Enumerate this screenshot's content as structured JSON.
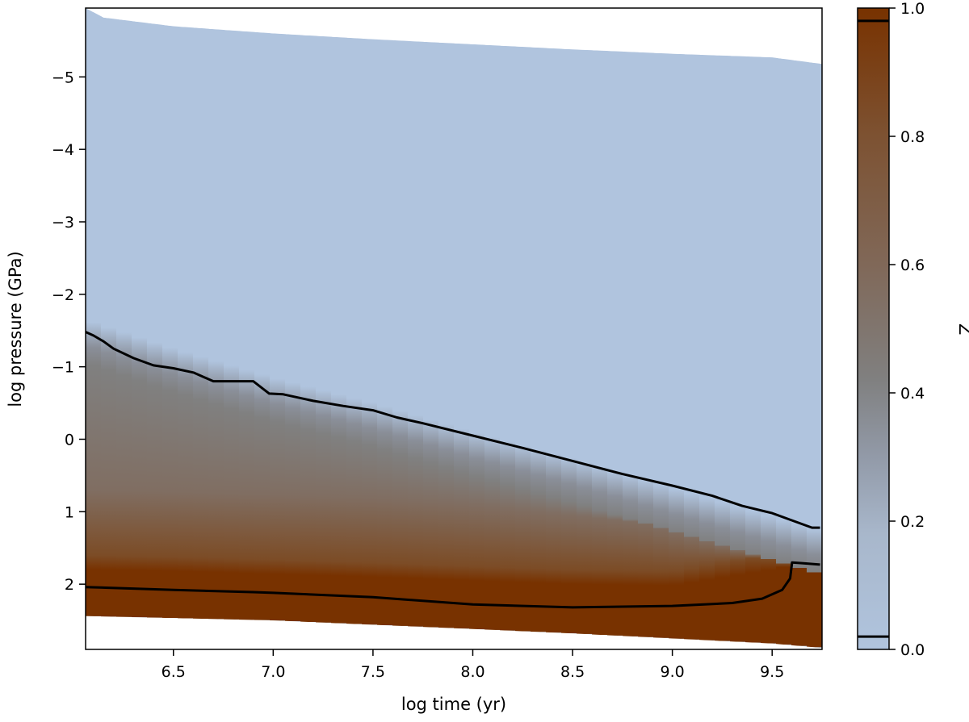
{
  "chart_data": {
    "type": "heatmap",
    "title": "",
    "xlabel": "log time (yr)",
    "ylabel": "log pressure (GPa)",
    "xlim": [
      6.06,
      9.75
    ],
    "ylim": [
      2.9,
      -5.95
    ],
    "y_axis_inverted": true,
    "x_ticks": [
      "6.5",
      "7.0",
      "7.5",
      "8.0",
      "8.5",
      "9.0",
      "9.5"
    ],
    "x_tick_values": [
      6.5,
      7.0,
      7.5,
      8.0,
      8.5,
      9.0,
      9.5
    ],
    "y_ticks": [
      "−5",
      "−4",
      "−3",
      "−2",
      "−1",
      "0",
      "1",
      "2"
    ],
    "y_tick_values": [
      -5,
      -4,
      -3,
      -2,
      -1,
      0,
      1,
      2
    ],
    "colorbar": {
      "label": "Z",
      "range": [
        0.0,
        1.0
      ],
      "ticks": [
        "0.0",
        "0.2",
        "0.4",
        "0.6",
        "0.8",
        "1.0"
      ],
      "tick_values": [
        0.0,
        0.2,
        0.4,
        0.6,
        0.8,
        1.0
      ],
      "marked_levels": [
        0.02,
        0.98
      ],
      "colors": {
        "low": "#b0c4de",
        "mid": "#808080",
        "high": "#783200"
      }
    },
    "domain": {
      "top_boundary": [
        [
          6.06,
          -5.95
        ],
        [
          6.15,
          -5.82
        ],
        [
          6.5,
          -5.7
        ],
        [
          7.0,
          -5.6
        ],
        [
          7.5,
          -5.52
        ],
        [
          8.0,
          -5.45
        ],
        [
          8.5,
          -5.38
        ],
        [
          9.0,
          -5.32
        ],
        [
          9.5,
          -5.27
        ],
        [
          9.75,
          -5.18
        ]
      ],
      "bottom_boundary": [
        [
          6.06,
          2.44
        ],
        [
          7.0,
          2.5
        ],
        [
          7.5,
          2.56
        ],
        [
          8.0,
          2.62
        ],
        [
          8.5,
          2.68
        ],
        [
          9.0,
          2.75
        ],
        [
          9.5,
          2.82
        ],
        [
          9.75,
          2.88
        ]
      ]
    },
    "contours": [
      {
        "level": 0.02,
        "points": [
          [
            6.06,
            -1.48
          ],
          [
            6.1,
            -1.43
          ],
          [
            6.15,
            -1.35
          ],
          [
            6.2,
            -1.25
          ],
          [
            6.3,
            -1.12
          ],
          [
            6.4,
            -1.02
          ],
          [
            6.5,
            -0.98
          ],
          [
            6.6,
            -0.92
          ],
          [
            6.7,
            -0.8
          ],
          [
            6.8,
            -0.8
          ],
          [
            6.9,
            -0.8
          ],
          [
            6.98,
            -0.63
          ],
          [
            7.05,
            -0.62
          ],
          [
            7.2,
            -0.53
          ],
          [
            7.35,
            -0.46
          ],
          [
            7.5,
            -0.4
          ],
          [
            7.62,
            -0.3
          ],
          [
            7.75,
            -0.22
          ],
          [
            8.0,
            -0.05
          ],
          [
            8.25,
            0.12
          ],
          [
            8.5,
            0.3
          ],
          [
            8.75,
            0.48
          ],
          [
            9.0,
            0.64
          ],
          [
            9.2,
            0.78
          ],
          [
            9.35,
            0.92
          ],
          [
            9.5,
            1.02
          ],
          [
            9.6,
            1.12
          ],
          [
            9.7,
            1.22
          ],
          [
            9.74,
            1.22
          ]
        ]
      },
      {
        "level": 0.98,
        "points": [
          [
            6.06,
            2.04
          ],
          [
            6.5,
            2.08
          ],
          [
            6.9,
            2.11
          ],
          [
            7.0,
            2.12
          ],
          [
            7.5,
            2.18
          ],
          [
            8.0,
            2.28
          ],
          [
            8.5,
            2.32
          ],
          [
            9.0,
            2.3
          ],
          [
            9.3,
            2.26
          ],
          [
            9.45,
            2.2
          ],
          [
            9.55,
            2.08
          ],
          [
            9.59,
            1.92
          ],
          [
            9.6,
            1.7
          ],
          [
            9.65,
            1.71
          ],
          [
            9.74,
            1.73
          ]
        ]
      }
    ],
    "bands": {
      "xs": [
        6.06,
        6.5,
        7.0,
        7.5,
        8.0,
        8.5,
        9.0,
        9.5,
        9.75
      ],
      "mid_top": [
        -1.3,
        -0.9,
        -0.5,
        -0.15,
        0.25,
        0.62,
        1.02,
        1.42,
        1.62
      ],
      "mid_bottom": [
        0.7,
        0.72,
        0.76,
        0.8,
        0.9,
        1.05,
        1.2,
        1.45,
        1.62
      ],
      "high_start": [
        1.8,
        1.82,
        1.86,
        1.9,
        1.95,
        2.0,
        2.02,
        1.8,
        1.65
      ]
    }
  }
}
